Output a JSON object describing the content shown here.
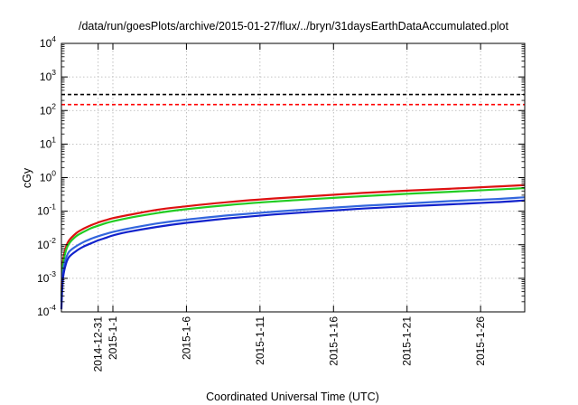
{
  "chart_data": {
    "type": "line",
    "title": "/data/run/goesPlots/archive/2015-01-27/flux/../bryn/31daysEarthDataAccumulated.plot",
    "xlabel": "Coordinated Universal Time (UTC)",
    "ylabel": "cGy",
    "y_scale": "log",
    "ylim": [
      0.0001,
      10000
    ],
    "xlim": [
      "2014-12-28T12:00",
      "2015-01-29T00:00"
    ],
    "grid": true,
    "legend": "none",
    "y_ticks": [
      {
        "base": "10",
        "exp": "-4",
        "value": 0.0001
      },
      {
        "base": "10",
        "exp": "-3",
        "value": 0.001
      },
      {
        "base": "10",
        "exp": "-2",
        "value": 0.01
      },
      {
        "base": "10",
        "exp": "-1",
        "value": 0.1
      },
      {
        "base": "10",
        "exp": "0",
        "value": 1
      },
      {
        "base": "10",
        "exp": "1",
        "value": 10
      },
      {
        "base": "10",
        "exp": "2",
        "value": 100
      },
      {
        "base": "10",
        "exp": "3",
        "value": 1000
      },
      {
        "base": "10",
        "exp": "4",
        "value": 10000
      }
    ],
    "x_ticks": [
      {
        "label": "2014-12-31",
        "value": "2014-12-31"
      },
      {
        "label": "2015-1-1",
        "value": "2015-01-01"
      },
      {
        "label": "2015-1-6",
        "value": "2015-01-06"
      },
      {
        "label": "2015-1-11",
        "value": "2015-01-11"
      },
      {
        "label": "2015-1-16",
        "value": "2015-01-16"
      },
      {
        "label": "2015-1-21",
        "value": "2015-01-21"
      },
      {
        "label": "2015-1-26",
        "value": "2015-01-26"
      }
    ],
    "reference_lines": [
      {
        "y": 300,
        "color": "#000000",
        "style": "dashed"
      },
      {
        "y": 150,
        "color": "#ff0000",
        "style": "dashed"
      }
    ],
    "series": [
      {
        "color": "#dd1111",
        "x": [
          "2014-12-28T12:00",
          "2014-12-28T14:00",
          "2014-12-28T18:00",
          "2014-12-29T00:00",
          "2014-12-29T12:00",
          "2014-12-30T00:00",
          "2014-12-30T12:00",
          "2014-12-31T00:00",
          "2014-12-31T12:00",
          "2015-01-01T00:00",
          "2015-01-02T00:00",
          "2015-01-04T00:00",
          "2015-01-06T00:00",
          "2015-01-09T00:00",
          "2015-01-12T00:00",
          "2015-01-15T00:00",
          "2015-01-18T00:00",
          "2015-01-21T00:00",
          "2015-01-24T00:00",
          "2015-01-27T00:00",
          "2015-01-29T00:00"
        ],
        "values": [
          0.0003,
          0.0025,
          0.007,
          0.013,
          0.022,
          0.03,
          0.038,
          0.046,
          0.054,
          0.062,
          0.076,
          0.11,
          0.14,
          0.19,
          0.24,
          0.29,
          0.35,
          0.41,
          0.47,
          0.54,
          0.6
        ]
      },
      {
        "color": "#22cc22",
        "x": [
          "2014-12-28T12:00",
          "2014-12-28T14:00",
          "2014-12-28T18:00",
          "2014-12-29T00:00",
          "2014-12-29T12:00",
          "2014-12-30T00:00",
          "2014-12-30T12:00",
          "2014-12-31T00:00",
          "2014-12-31T12:00",
          "2015-01-01T00:00",
          "2015-01-02T00:00",
          "2015-01-04T00:00",
          "2015-01-06T00:00",
          "2015-01-09T00:00",
          "2015-01-12T00:00",
          "2015-01-15T00:00",
          "2015-01-18T00:00",
          "2015-01-21T00:00",
          "2015-01-24T00:00",
          "2015-01-27T00:00",
          "2015-01-29T00:00"
        ],
        "values": [
          0.0002,
          0.0019,
          0.0055,
          0.0105,
          0.018,
          0.024,
          0.031,
          0.037,
          0.044,
          0.05,
          0.062,
          0.088,
          0.115,
          0.155,
          0.195,
          0.235,
          0.28,
          0.33,
          0.38,
          0.44,
          0.49
        ]
      },
      {
        "color": "#3366dd",
        "x": [
          "2014-12-28T12:00",
          "2014-12-28T14:00",
          "2014-12-28T18:00",
          "2014-12-29T00:00",
          "2014-12-29T12:00",
          "2014-12-30T00:00",
          "2014-12-30T12:00",
          "2014-12-31T00:00",
          "2014-12-31T12:00",
          "2015-01-01T00:00",
          "2015-01-02T00:00",
          "2015-01-04T00:00",
          "2015-01-06T00:00",
          "2015-01-09T00:00",
          "2015-01-12T00:00",
          "2015-01-15T00:00",
          "2015-01-18T00:00",
          "2015-01-21T00:00",
          "2015-01-24T00:00",
          "2015-01-27T00:00",
          "2015-01-29T00:00"
        ],
        "values": [
          0.0002,
          0.0012,
          0.0032,
          0.006,
          0.009,
          0.012,
          0.015,
          0.018,
          0.021,
          0.024,
          0.03,
          0.043,
          0.056,
          0.076,
          0.097,
          0.12,
          0.145,
          0.17,
          0.2,
          0.23,
          0.26
        ]
      },
      {
        "color": "#1122cc",
        "x": [
          "2014-12-28T12:00",
          "2014-12-28T14:00",
          "2014-12-28T18:00",
          "2014-12-29T00:00",
          "2014-12-29T12:00",
          "2014-12-30T00:00",
          "2014-12-30T12:00",
          "2014-12-31T00:00",
          "2014-12-31T12:00",
          "2015-01-01T00:00",
          "2015-01-02T00:00",
          "2015-01-04T00:00",
          "2015-01-06T00:00",
          "2015-01-09T00:00",
          "2015-01-12T00:00",
          "2015-01-15T00:00",
          "2015-01-18T00:00",
          "2015-01-21T00:00",
          "2015-01-24T00:00",
          "2015-01-27T00:00",
          "2015-01-29T00:00"
        ],
        "values": [
          0.00012,
          0.0008,
          0.0022,
          0.0042,
          0.0065,
          0.0088,
          0.011,
          0.0135,
          0.016,
          0.019,
          0.024,
          0.034,
          0.045,
          0.062,
          0.08,
          0.099,
          0.12,
          0.14,
          0.16,
          0.185,
          0.21
        ]
      }
    ]
  }
}
